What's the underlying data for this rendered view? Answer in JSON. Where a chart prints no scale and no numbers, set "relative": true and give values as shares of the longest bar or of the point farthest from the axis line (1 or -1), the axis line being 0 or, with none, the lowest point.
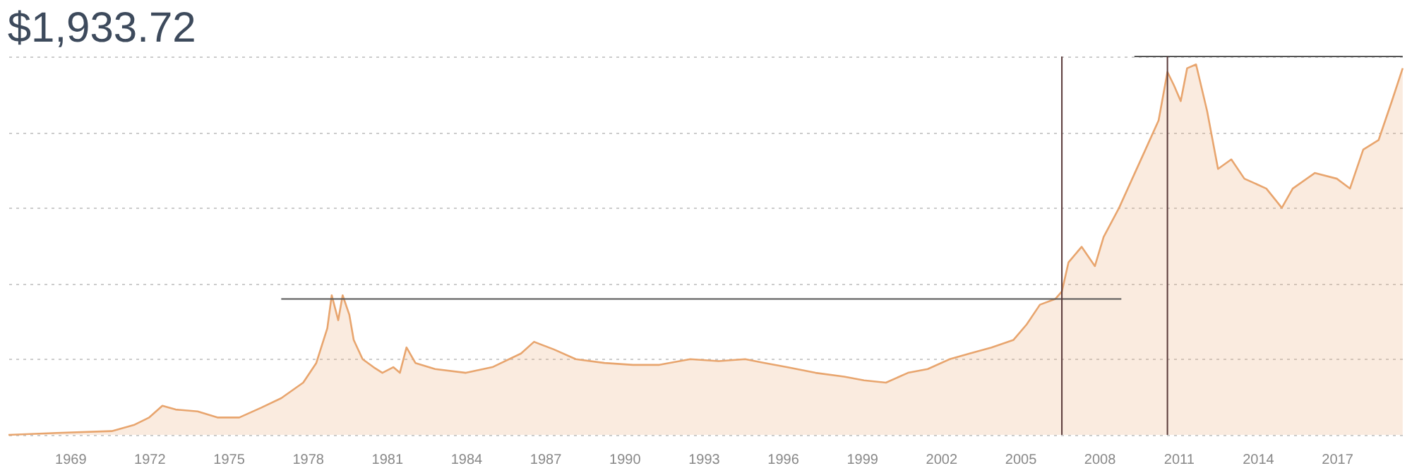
{
  "chart_data": {
    "type": "area",
    "title": "$1,933.72",
    "relative": true,
    "grid": "y",
    "xlim": [
      "1966-09",
      "2019-08"
    ],
    "xticks": [
      "1969",
      "1972",
      "1975",
      "1978",
      "1981",
      "1984",
      "1987",
      "1990",
      "1993",
      "1996",
      "1999",
      "2002",
      "2005",
      "2008",
      "2011",
      "2014",
      "2017"
    ],
    "series": [
      {
        "color": "#e8a56e",
        "x": [
          "1966-09",
          "1968-07",
          "1970-08",
          "1971-06",
          "1972-01",
          "1972-07",
          "1973-01",
          "1973-11",
          "1974-08",
          "1975-06",
          "1976-04",
          "1977-01",
          "1977-11",
          "1978-05",
          "1978-10",
          "1978-12",
          "1979-03",
          "1979-05",
          "1979-08",
          "1979-10",
          "1980-02",
          "1980-07",
          "1980-11",
          "1981-04",
          "1981-07",
          "1981-10",
          "1982-02",
          "1982-11",
          "1984-01",
          "1985-01",
          "1986-02",
          "1986-08",
          "1987-05",
          "1988-03",
          "1989-04",
          "1990-05",
          "1991-05",
          "1992-07",
          "1993-08",
          "1994-08",
          "1995-05",
          "1996-03",
          "1997-04",
          "1998-05",
          "1999-02",
          "1999-12",
          "2000-10",
          "2001-07",
          "2002-05",
          "2003-02",
          "2003-12",
          "2004-10",
          "2005-04",
          "2005-10",
          "2006-05",
          "2006-08",
          "2006-11",
          "2007-05",
          "2007-11",
          "2008-03",
          "2008-10",
          "2009-04",
          "2009-10",
          "2010-04",
          "2010-08",
          "2010-11",
          "2011-02",
          "2011-05",
          "2011-09",
          "2012-02",
          "2012-07",
          "2013-01",
          "2013-07",
          "2014-05",
          "2014-12",
          "2015-05",
          "2016-03",
          "2017-01",
          "2017-07",
          "2018-01",
          "2018-08",
          "2019-02",
          "2019-07"
        ],
        "values": [
          0,
          0.005,
          0.01,
          0.026,
          0.046,
          0.077,
          0.067,
          0.062,
          0.046,
          0.046,
          0.072,
          0.097,
          0.138,
          0.19,
          0.282,
          0.369,
          0.303,
          0.369,
          0.318,
          0.251,
          0.2,
          0.179,
          0.164,
          0.179,
          0.164,
          0.231,
          0.19,
          0.174,
          0.164,
          0.179,
          0.215,
          0.246,
          0.226,
          0.2,
          0.19,
          0.185,
          0.185,
          0.2,
          0.195,
          0.2,
          0.19,
          0.179,
          0.164,
          0.154,
          0.144,
          0.138,
          0.164,
          0.174,
          0.2,
          0.215,
          0.231,
          0.251,
          0.292,
          0.344,
          0.359,
          0.379,
          0.456,
          0.497,
          0.446,
          0.523,
          0.6,
          0.677,
          0.754,
          0.831,
          0.959,
          0.923,
          0.882,
          0.969,
          0.979,
          0.856,
          0.703,
          0.728,
          0.677,
          0.651,
          0.6,
          0.651,
          0.692,
          0.677,
          0.651,
          0.754,
          0.779,
          0.882,
          0.969
        ]
      },
      {
        "type": "line",
        "color": "#555555",
        "x": [
          "1977-01",
          "2008-11"
        ],
        "values": [
          0.359,
          0.359
        ]
      },
      {
        "type": "line",
        "color": "#555555",
        "x": [
          "2009-05",
          "2019-07"
        ],
        "values": [
          1.0,
          1.0
        ]
      }
    ],
    "ref_lines": [
      {
        "axis": "x",
        "value": "2006-08",
        "color": "#5a3a3a"
      },
      {
        "axis": "x",
        "value": "2010-08",
        "color": "#5a3a3a"
      }
    ]
  }
}
